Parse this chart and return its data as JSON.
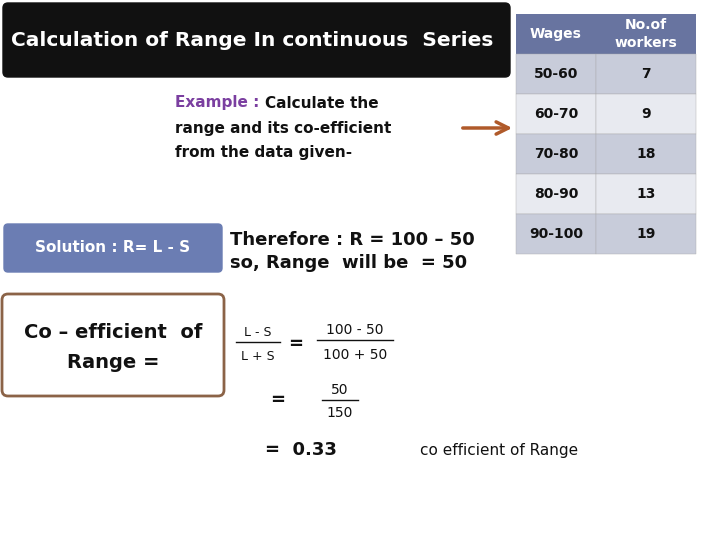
{
  "title": "Calculation of Range In continuous  Series",
  "title_bg": "#111111",
  "title_fg": "#ffffff",
  "example_label": "Example : ",
  "example_label_color": "#7b3fa0",
  "table_header_bg": "#6874a0",
  "table_row_bg_odd": "#c8ccda",
  "table_row_bg_even": "#e8eaf0",
  "table_header_fg": "#ffffff",
  "table_fg": "#111111",
  "table_wages": [
    "50-60",
    "60-70",
    "70-80",
    "80-90",
    "90-100"
  ],
  "table_workers": [
    "7",
    "9",
    "18",
    "13",
    "19"
  ],
  "solution_label": "Solution : R= L - S",
  "solution_bg": "#6b7db3",
  "solution_fg": "#ffffff",
  "solution_text1": "Therefore : R = 100 – 50",
  "solution_text2": "so, Range  will be  = 50",
  "coeff_label1": "Co – efficient  of",
  "coeff_label2": "Range =",
  "coeff_box_color": "#8B6347",
  "result_label": "co efficient of Range",
  "bg_color": "#ffffff",
  "arrow_color": "#b05a2a"
}
